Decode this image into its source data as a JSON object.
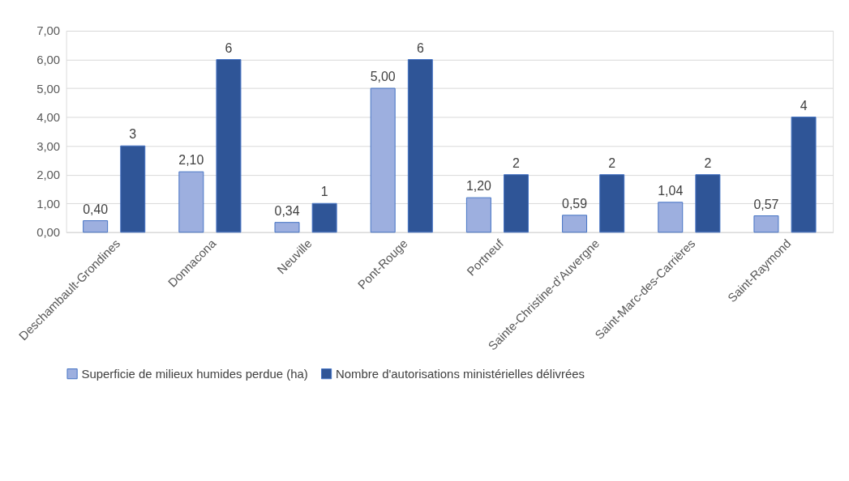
{
  "chart_data": {
    "type": "bar",
    "categories": [
      "Deschambault-Grondines",
      "Donnacona",
      "Neuville",
      "Pont-Rouge",
      "Portneuf",
      "Sainte-Christine-d’Auvergne",
      "Saint-Marc-des-Carrières",
      "Saint-Raymond"
    ],
    "series": [
      {
        "name": "Superficie de milieux humides perdue (ha)",
        "color": "#9dafdf",
        "values": [
          0.4,
          2.1,
          0.34,
          5.0,
          1.2,
          0.59,
          1.04,
          0.57
        ],
        "value_labels": [
          "0,40",
          "2,10",
          "0,34",
          "5,00",
          "1,20",
          "0,59",
          "1,04",
          "0,57"
        ]
      },
      {
        "name": "Nombre d'autorisations ministérielles délivrées",
        "color": "#2f5597",
        "values": [
          3,
          6,
          1,
          6,
          2,
          2,
          2,
          4
        ],
        "value_labels": [
          "3",
          "6",
          "1",
          "6",
          "2",
          "2",
          "2",
          "4"
        ]
      }
    ],
    "ylim": [
      0,
      7
    ],
    "yticks": [
      {
        "value": 0,
        "label": "0,00"
      },
      {
        "value": 1,
        "label": "1,00"
      },
      {
        "value": 2,
        "label": "2,00"
      },
      {
        "value": 3,
        "label": "3,00"
      },
      {
        "value": 4,
        "label": "4,00"
      },
      {
        "value": 5,
        "label": "5,00"
      },
      {
        "value": 6,
        "label": "6,00"
      },
      {
        "value": 7,
        "label": "7,00"
      }
    ],
    "grid": "y",
    "legend": "bottom"
  }
}
